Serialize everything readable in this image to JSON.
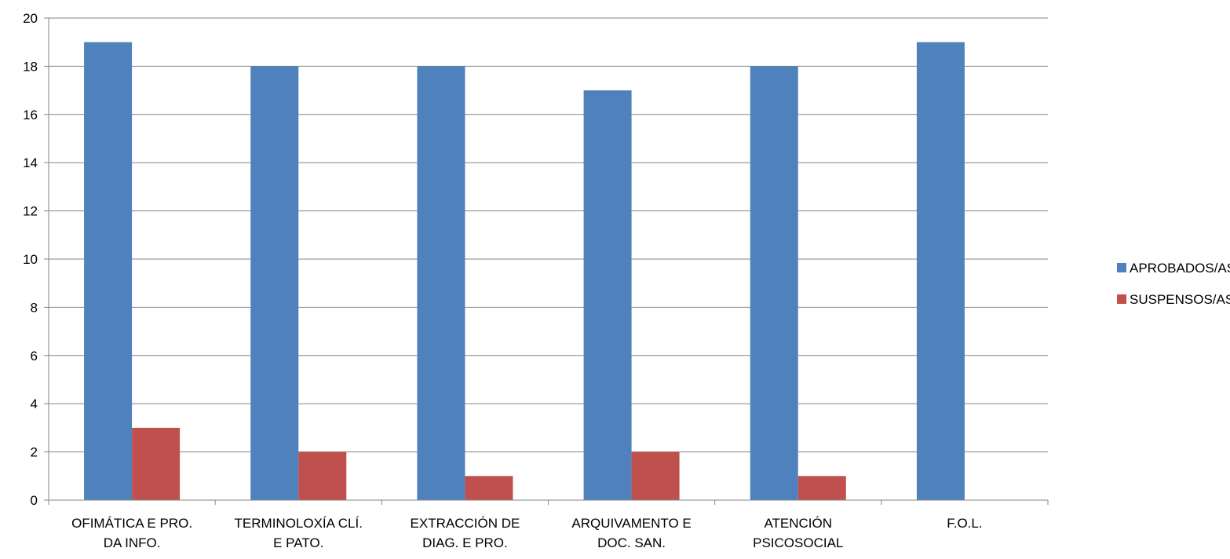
{
  "chart_data": {
    "type": "bar",
    "title": "",
    "xlabel": "",
    "ylabel": "",
    "ylim": [
      0,
      20
    ],
    "yticks": [
      0,
      2,
      4,
      6,
      8,
      10,
      12,
      14,
      16,
      18,
      20
    ],
    "grid": true,
    "legend_position": "right",
    "categories": [
      [
        "OFIMÁTICA E PRO.",
        "DA INFO."
      ],
      [
        "TERMINOLOXÍA CLÍ.",
        "E PATO."
      ],
      [
        "EXTRACCIÓN DE",
        "DIAG. E PRO."
      ],
      [
        "ARQUIVAMENTO E",
        "DOC. SAN."
      ],
      [
        "ATENCIÓN",
        "PSICOSOCIAL"
      ],
      [
        "F.O.L."
      ]
    ],
    "series": [
      {
        "name": "APROBADOS/AS",
        "color": "#4F81BD",
        "values": [
          19,
          18,
          18,
          17,
          18,
          19
        ]
      },
      {
        "name": "SUSPENSOS/AS",
        "color": "#C0504D",
        "values": [
          3,
          2,
          1,
          2,
          1,
          0
        ]
      }
    ]
  }
}
